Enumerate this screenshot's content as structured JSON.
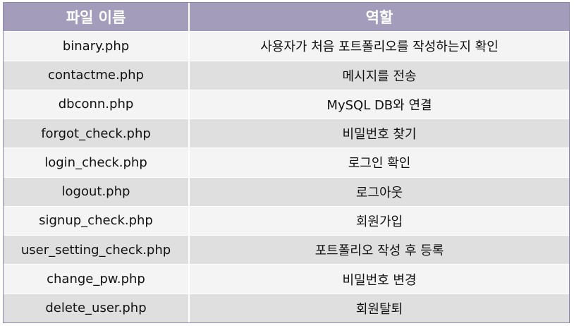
{
  "table": {
    "headers": [
      "파일 이름",
      "역할"
    ],
    "rows": [
      [
        "binary.php",
        "사용자가 처음 포트폴리오를 작성하는지 확인"
      ],
      [
        "contactme.php",
        "메시지를 전송"
      ],
      [
        "dbconn.php",
        "MySQL DB와 연결"
      ],
      [
        "forgot_check.php",
        "비밀번호 찾기"
      ],
      [
        "login_check.php",
        "로그인 확인"
      ],
      [
        "logout.php",
        "로그아웃"
      ],
      [
        "signup_check.php",
        "회원가입"
      ],
      [
        "user_setting_check.php",
        "포트폴리오 작성 후 등록"
      ],
      [
        "change_pw.php",
        "비밀번호 변경"
      ],
      [
        "delete_user.php",
        "회원탈퇴"
      ]
    ]
  },
  "colors": {
    "header_bg": "#a39cba",
    "row_light": "#f4f4f4",
    "row_dark": "#dfdfdf"
  }
}
